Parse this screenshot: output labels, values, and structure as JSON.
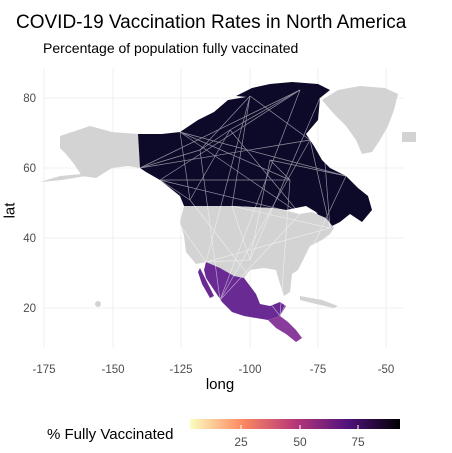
{
  "title": "COVID-19 Vaccination Rates in North America",
  "subtitle": "Percentage of population fully vaccinated",
  "x_axis": {
    "label": "long",
    "ticks": [
      "-175",
      "-150",
      "-125",
      "-100",
      "-75",
      "-50"
    ]
  },
  "y_axis": {
    "label": "lat",
    "ticks": [
      "20",
      "40",
      "60",
      "80"
    ]
  },
  "legend": {
    "title": "% Fully Vaccinated",
    "ticks": [
      "25",
      "50",
      "75"
    ],
    "colors": [
      "#fcfdbf",
      "#fc8961",
      "#b73779",
      "#51127c",
      "#000004"
    ]
  },
  "colors": {
    "canada": "#0d0a29",
    "usa": "#d3d3d3",
    "mexico": "#6a2a94",
    "central_america": "#8a3c9c",
    "greenland": "#d3d3d3",
    "grid": "#ebebeb",
    "border_line": "#ffffff"
  },
  "chart_data": {
    "type": "choropleth",
    "title": "COVID-19 Vaccination Rates in North America",
    "subtitle": "Percentage of population fully vaccinated",
    "xlabel": "long",
    "ylabel": "lat",
    "xlim": [
      -175,
      -50
    ],
    "ylim": [
      10,
      85
    ],
    "fill_scale": {
      "name": "% Fully Vaccinated",
      "palette": "magma",
      "ticks": [
        25,
        50,
        75
      ]
    }
  }
}
